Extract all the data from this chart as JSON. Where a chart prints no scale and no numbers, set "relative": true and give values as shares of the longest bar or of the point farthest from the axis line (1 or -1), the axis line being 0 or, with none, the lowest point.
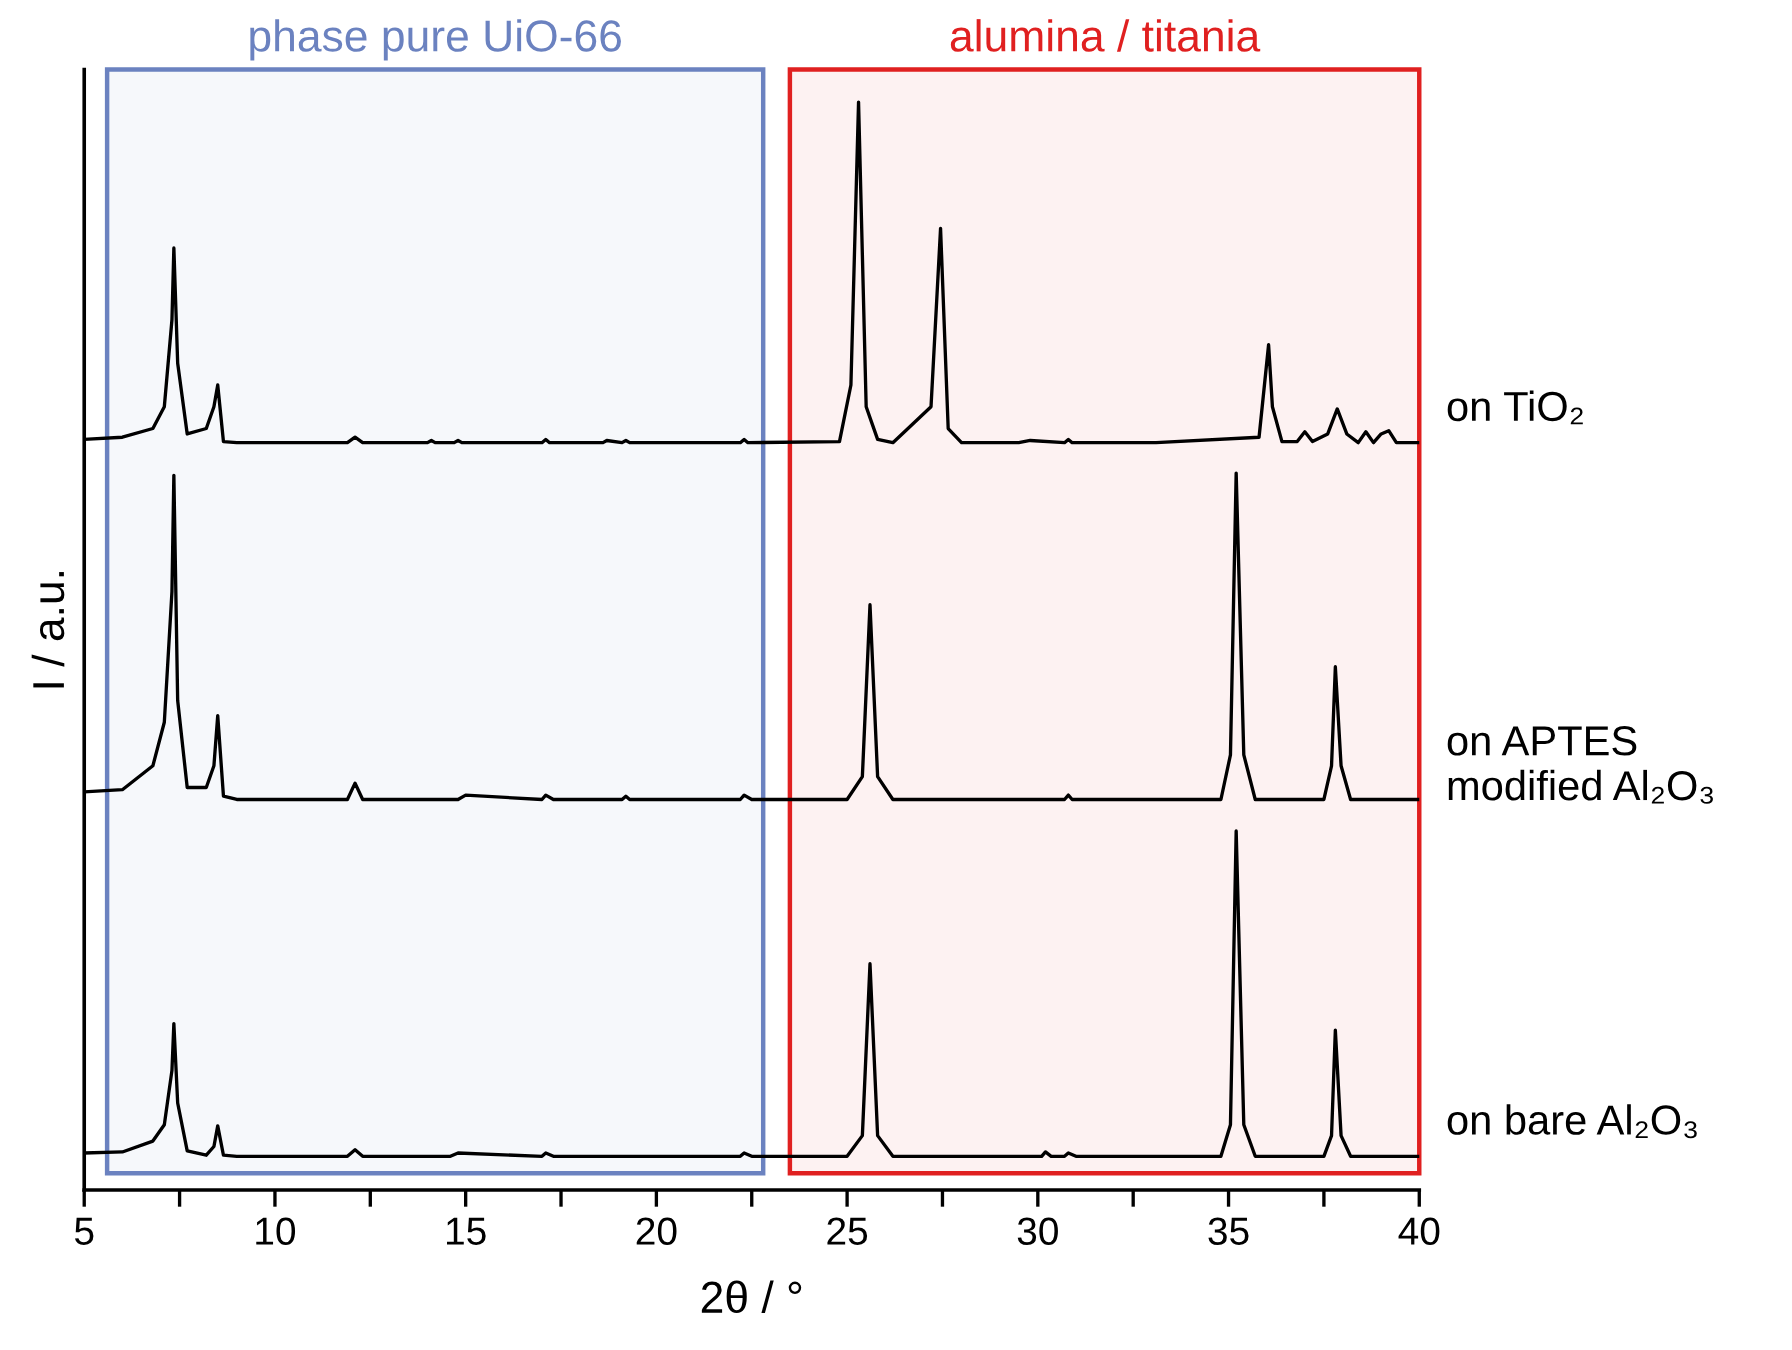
{
  "chart_data": {
    "type": "line",
    "relative": true,
    "xlabel": "2θ / °",
    "ylabel": "I / a.u.",
    "xlim": [
      5,
      40
    ],
    "xticks": [
      5,
      {
        "value": 7.5,
        "label": null
      },
      10,
      {
        "value": 12.5,
        "label": null
      },
      15,
      {
        "value": 17.5,
        "label": null
      },
      20,
      {
        "value": 22.5,
        "label": null
      },
      25,
      {
        "value": 27.5,
        "label": null
      },
      30,
      {
        "value": 32.5,
        "label": null
      },
      35,
      {
        "value": 37.5,
        "label": null
      },
      40
    ],
    "grid": false,
    "legend": false,
    "marker": "none",
    "line_style": "solid",
    "bands": [
      {
        "axis": "x",
        "from": 5.6,
        "to": 22.8,
        "label": "phase pure UiO-66",
        "color": "#6b82c0"
      },
      {
        "axis": "x",
        "from": 23.5,
        "to": 40,
        "label": "alumina / titania",
        "color": "#e02020"
      }
    ],
    "series": [
      {
        "name": "on TiO₂",
        "color": "#000000",
        "x": [
          5,
          6,
          6.8,
          7.1,
          7.3,
          7.35,
          7.45,
          7.7,
          8.2,
          8.4,
          8.5,
          8.65,
          9,
          11.9,
          12.1,
          12.3,
          14,
          14.1,
          14.2,
          14.7,
          14.8,
          14.9,
          17,
          17.1,
          17.2,
          18.6,
          18.7,
          19.1,
          19.2,
          19.3,
          22.2,
          22.3,
          22.4,
          24.8,
          25.1,
          25.3,
          25.5,
          25.65,
          25.8,
          26.2,
          27.2,
          27.45,
          27.65,
          28,
          29.5,
          29.8,
          30.7,
          30.8,
          30.9,
          33.1,
          35.8,
          36.05,
          36.15,
          36.4,
          36.8,
          37,
          37.2,
          37.6,
          37.85,
          38.1,
          38.4,
          38.6,
          38.8,
          39.0,
          39.2,
          39.4,
          40
        ],
        "values": [
          0.69,
          0.692,
          0.7,
          0.72,
          0.8,
          0.866,
          0.76,
          0.695,
          0.7,
          0.72,
          0.74,
          0.688,
          0.687,
          0.687,
          0.692,
          0.687,
          0.687,
          0.689,
          0.687,
          0.687,
          0.689,
          0.687,
          0.687,
          0.69,
          0.687,
          0.687,
          0.689,
          0.687,
          0.689,
          0.687,
          0.687,
          0.69,
          0.687,
          0.688,
          0.74,
          1.0,
          0.72,
          0.705,
          0.69,
          0.687,
          0.72,
          0.884,
          0.7,
          0.687,
          0.687,
          0.689,
          0.687,
          0.69,
          0.687,
          0.687,
          0.692,
          0.777,
          0.72,
          0.688,
          0.688,
          0.697,
          0.688,
          0.695,
          0.718,
          0.695,
          0.687,
          0.697,
          0.687,
          0.695,
          0.698,
          0.687,
          0.687
        ]
      },
      {
        "name": "on APTES\nmodified Al₂O₃",
        "color": "#000000",
        "x": [
          5,
          6,
          6.8,
          7.1,
          7.3,
          7.35,
          7.45,
          7.7,
          8.2,
          8.4,
          8.5,
          8.65,
          9,
          11.9,
          12.1,
          12.3,
          14.8,
          15,
          17,
          17.1,
          17.3,
          19.1,
          19.2,
          19.3,
          22.2,
          22.3,
          22.5,
          25,
          25.4,
          25.6,
          25.8,
          26.2,
          30.7,
          30.8,
          30.9,
          34.8,
          35.05,
          35.2,
          35.4,
          35.7,
          37.5,
          37.7,
          37.8,
          37.95,
          38.2,
          40
        ],
        "values": [
          0.366,
          0.368,
          0.39,
          0.43,
          0.55,
          0.657,
          0.45,
          0.37,
          0.37,
          0.39,
          0.436,
          0.362,
          0.359,
          0.359,
          0.374,
          0.359,
          0.359,
          0.363,
          0.359,
          0.363,
          0.359,
          0.359,
          0.362,
          0.359,
          0.359,
          0.363,
          0.359,
          0.359,
          0.38,
          0.538,
          0.38,
          0.359,
          0.359,
          0.363,
          0.359,
          0.359,
          0.4,
          0.659,
          0.4,
          0.359,
          0.359,
          0.39,
          0.481,
          0.39,
          0.359,
          0.359
        ]
      },
      {
        "name": "on bare Al₂O₃",
        "color": "#000000",
        "x": [
          5,
          6,
          6.8,
          7.1,
          7.3,
          7.35,
          7.45,
          7.7,
          8.2,
          8.4,
          8.5,
          8.65,
          9,
          11.9,
          12.1,
          12.3,
          14.6,
          14.8,
          17,
          17.1,
          17.3,
          22.2,
          22.3,
          22.5,
          25,
          25.4,
          25.6,
          25.8,
          26.2,
          30.1,
          30.2,
          30.35,
          30.7,
          30.8,
          31,
          34.8,
          35.05,
          35.2,
          35.4,
          35.7,
          37.5,
          37.7,
          37.8,
          37.95,
          38.2,
          40
        ],
        "values": [
          0.034,
          0.035,
          0.045,
          0.06,
          0.11,
          0.153,
          0.08,
          0.036,
          0.032,
          0.04,
          0.059,
          0.032,
          0.031,
          0.031,
          0.037,
          0.031,
          0.031,
          0.034,
          0.031,
          0.034,
          0.031,
          0.031,
          0.034,
          0.031,
          0.031,
          0.05,
          0.208,
          0.05,
          0.031,
          0.031,
          0.035,
          0.031,
          0.031,
          0.034,
          0.031,
          0.031,
          0.06,
          0.33,
          0.06,
          0.031,
          0.031,
          0.05,
          0.147,
          0.05,
          0.031,
          0.031
        ]
      }
    ]
  }
}
